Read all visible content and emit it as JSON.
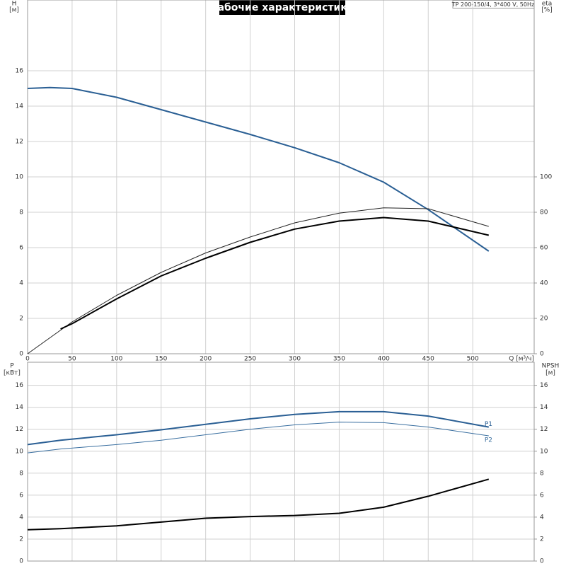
{
  "chart_data": [
    {
      "type": "line",
      "title": "Рабочие характеристики",
      "note": "TP 200-150/4, 3*400 V, 50Hz",
      "ylabel": "H",
      "yunit": "[м]",
      "y2label": "eta",
      "y2unit": "[%]",
      "xlabel": "Q [м³/ч]",
      "xlim": [
        0,
        569
      ],
      "xticks": [
        0,
        50,
        100,
        150,
        200,
        250,
        300,
        350,
        400,
        450,
        500
      ],
      "ylim": [
        0,
        20
      ],
      "yticks": [
        0,
        2,
        4,
        6,
        8,
        10,
        12,
        14,
        16
      ],
      "y2lim": [
        0,
        200
      ],
      "y2ticks": [
        0,
        20,
        40,
        60,
        80,
        100
      ],
      "grid": true,
      "series": [
        {
          "color": "#2a5f94",
          "width": 2,
          "axis": "y",
          "x": [
            0,
            25,
            50,
            100,
            150,
            200,
            250,
            300,
            350,
            400,
            450,
            518
          ],
          "values": [
            15,
            15.05,
            15,
            14.5,
            13.8,
            13.1,
            12.4,
            11.65,
            10.8,
            9.7,
            8.15,
            5.8
          ]
        },
        {
          "color": "#222222",
          "width": 1,
          "axis": "y2",
          "x": [
            0,
            50,
            100,
            150,
            200,
            250,
            300,
            350,
            400,
            450,
            518
          ],
          "values": [
            0,
            18,
            33,
            46,
            57,
            66,
            74,
            79.5,
            82.5,
            82,
            72
          ]
        },
        {
          "color": "#000000",
          "width": 2,
          "axis": "y2",
          "x": [
            37,
            50,
            100,
            150,
            200,
            250,
            300,
            350,
            400,
            450,
            518
          ],
          "values": [
            14,
            17,
            31,
            44,
            54,
            63,
            70.5,
            75,
            77,
            75,
            67
          ]
        }
      ]
    },
    {
      "type": "line",
      "ylabel": "P",
      "yunit": "[кВт]",
      "y2label": "NPSH",
      "y2unit": "[м]",
      "xlim": [
        0,
        569
      ],
      "xticks": [
        0,
        50,
        100,
        150,
        200,
        250,
        300,
        350,
        400,
        450,
        500
      ],
      "ylim": [
        0,
        18.1
      ],
      "yticks": [
        0,
        2,
        4,
        6,
        8,
        10,
        12,
        14,
        16
      ],
      "y2lim": [
        0,
        18.1
      ],
      "y2ticks": [
        0,
        2,
        4,
        6,
        8,
        10,
        12,
        14,
        16
      ],
      "grid": true,
      "series": [
        {
          "name": "P1",
          "color": "#2a5f94",
          "width": 2,
          "axis": "y",
          "x": [
            0,
            37,
            100,
            150,
            200,
            250,
            300,
            350,
            400,
            450,
            518
          ],
          "values": [
            10.6,
            11.0,
            11.5,
            11.95,
            12.45,
            12.95,
            13.35,
            13.6,
            13.6,
            13.2,
            12.2
          ]
        },
        {
          "name": "P2",
          "color": "#3a6fa0",
          "width": 1,
          "axis": "y",
          "x": [
            0,
            37,
            100,
            150,
            200,
            250,
            300,
            350,
            400,
            450,
            518
          ],
          "values": [
            9.85,
            10.2,
            10.6,
            11.0,
            11.5,
            12.0,
            12.4,
            12.65,
            12.6,
            12.2,
            11.4
          ]
        },
        {
          "color": "#000000",
          "width": 2,
          "axis": "y2",
          "x": [
            0,
            37,
            100,
            150,
            200,
            250,
            300,
            350,
            400,
            450,
            518
          ],
          "values": [
            2.85,
            2.95,
            3.2,
            3.55,
            3.9,
            4.05,
            4.15,
            4.35,
            4.9,
            5.9,
            7.45
          ]
        }
      ]
    }
  ]
}
